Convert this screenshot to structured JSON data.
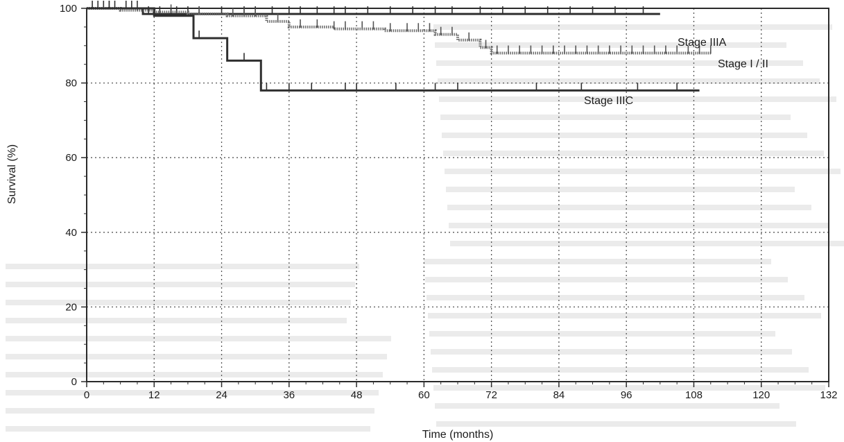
{
  "chart_data": {
    "type": "line",
    "subtype": "kaplan-meier",
    "xlabel": "Time (months)",
    "ylabel": "Survival (%)",
    "xlim": [
      0,
      132
    ],
    "ylim": [
      0,
      100
    ],
    "xticks": [
      0,
      12,
      24,
      36,
      48,
      60,
      72,
      84,
      96,
      108,
      120,
      132
    ],
    "yticks": [
      0,
      20,
      40,
      60,
      80,
      100
    ],
    "grid": true,
    "series": [
      {
        "name": "Stage IIIA",
        "style": "solid",
        "steps": [
          [
            0,
            100
          ],
          [
            10,
            98.5
          ],
          [
            102,
            98.5
          ]
        ],
        "censors": [
          1,
          3,
          5,
          7,
          9,
          11,
          13,
          16,
          18,
          20,
          24,
          28,
          30,
          33,
          36,
          38,
          41,
          44,
          46,
          50,
          54,
          58,
          62,
          65,
          70,
          74,
          78,
          82,
          86,
          90,
          94,
          99
        ]
      },
      {
        "name": "Stage I / II",
        "style": "dotted",
        "steps": [
          [
            0,
            100
          ],
          [
            6,
            99.5
          ],
          [
            12,
            99
          ],
          [
            18,
            98.5
          ],
          [
            25,
            98
          ],
          [
            32,
            96.5
          ],
          [
            36,
            95
          ],
          [
            44,
            94.5
          ],
          [
            53,
            94
          ],
          [
            62,
            93
          ],
          [
            66,
            91.5
          ],
          [
            70,
            89.5
          ],
          [
            72,
            88
          ],
          [
            111,
            88
          ]
        ],
        "censors": [
          4,
          9,
          15,
          20,
          26,
          28,
          30,
          34,
          38,
          41,
          44,
          46,
          49,
          51,
          54,
          57,
          59,
          61,
          63,
          65,
          68,
          71,
          73,
          75,
          77,
          79,
          81,
          83,
          85,
          87,
          89,
          91,
          93,
          95,
          97,
          99,
          101,
          103,
          105,
          107,
          109,
          111
        ]
      },
      {
        "name": "Stage IIIC",
        "style": "solid",
        "steps": [
          [
            0,
            100
          ],
          [
            12,
            98
          ],
          [
            19,
            92
          ],
          [
            25,
            86
          ],
          [
            31,
            78
          ],
          [
            109,
            78
          ]
        ],
        "censors": [
          2,
          4,
          8,
          15,
          20,
          28,
          32,
          36,
          40,
          46,
          48,
          55,
          62,
          66,
          80,
          88,
          98,
          105
        ]
      }
    ]
  }
}
